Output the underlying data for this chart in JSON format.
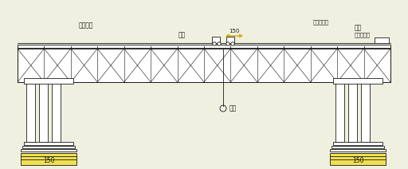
{
  "bg_color": "#f0f0e0",
  "line_color": "#1a1a1a",
  "fill_color": "#ffffff",
  "yellow_fill": "#f0e050",
  "fig_width": 5.12,
  "fig_height": 2.12,
  "dpi": 100,
  "labels": {
    "left_top": "捨桥跨车",
    "mid_top": "天车",
    "right_top1": "反向小橄机",
    "right_top2": "天车",
    "right_top3": "正向小橄机",
    "dim_150": "150",
    "hook": "吸钩",
    "left_bot": "150",
    "right_bot": "150"
  }
}
